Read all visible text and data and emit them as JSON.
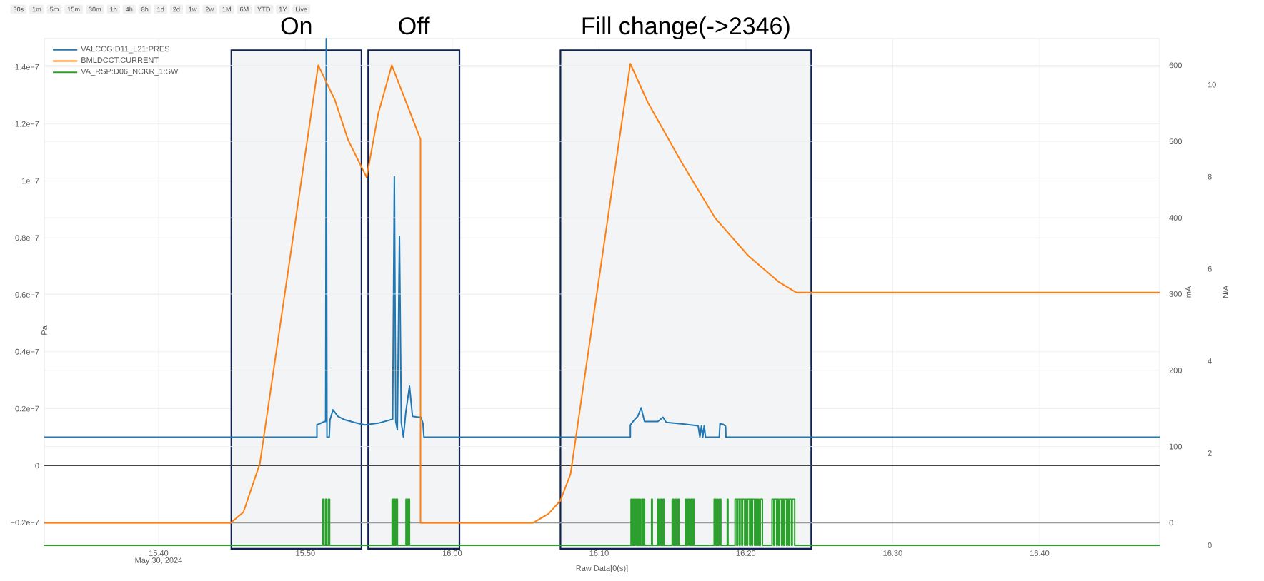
{
  "chart_data": {
    "type": "line",
    "xlabel": "Raw Data[0(s)]",
    "ylabel": "Pa",
    "y2label": "mA",
    "y3label": "N/A",
    "xlim": [
      15.537,
      16.803
    ],
    "xticks": [
      {
        "value": 15.6667,
        "label": "15:40"
      },
      {
        "value": 15.8333,
        "label": "15:50"
      },
      {
        "value": 16.0,
        "label": "16:00"
      },
      {
        "value": 16.1667,
        "label": "16:10"
      },
      {
        "value": 16.3333,
        "label": "16:20"
      },
      {
        "value": 16.5,
        "label": "16:30"
      },
      {
        "value": 16.6667,
        "label": "16:40"
      }
    ],
    "ylim": [
      -2.8e-08,
      1.5e-07
    ],
    "yticks": [
      {
        "value": -2e-08,
        "label": "−0.2e−7"
      },
      0,
      {
        "value": 2e-08,
        "label": "0.2e−7"
      },
      {
        "value": 4e-08,
        "label": "0.4e−7"
      },
      {
        "value": 6e-08,
        "label": "0.6e−7"
      },
      {
        "value": 8e-08,
        "label": "0.8e−7"
      },
      {
        "value": 1e-07,
        "label": "1e−7"
      },
      {
        "value": 1.2e-07,
        "label": "1.2e−7"
      },
      {
        "value": 1.4e-07,
        "label": "1.4e−7"
      }
    ],
    "y2lim": [
      -29.5,
      635
    ],
    "y2ticks": [
      0,
      100,
      200,
      300,
      400,
      500,
      600
    ],
    "y3lim": [
      0,
      11
    ],
    "y3ticks": [
      0,
      2,
      4,
      6,
      8,
      10
    ],
    "grid": true,
    "legend": "top left",
    "series": [
      {
        "name": "VALCCG:D11_L21:PRES",
        "color": "#1f77b4",
        "axis": "y",
        "x": [
          15.537,
          15.8464,
          15.8464,
          15.8551,
          15.8563,
          15.857,
          15.8578,
          15.8604,
          15.8612,
          15.8646,
          15.8703,
          15.878,
          15.8894,
          15.9008,
          15.9161,
          15.9324,
          15.9343,
          15.9359,
          15.9377,
          15.9401,
          15.9422,
          15.9446,
          15.9472,
          15.9515,
          15.9549,
          15.9617,
          15.9644,
          15.9667,
          15.9679,
          16.2022,
          16.2022,
          16.2068,
          16.2106,
          16.2144,
          16.2183,
          16.2334,
          16.2392,
          16.2429,
          16.2601,
          16.2791,
          16.2811,
          16.2829,
          16.2844,
          16.286,
          16.2875,
          16.3031,
          16.3039,
          16.3076,
          16.3103,
          16.3107,
          16.803
        ],
        "values": [
          1e-08,
          1e-08,
          1.43e-08,
          1.55e-08,
          1.55e-08,
          1.5e-07,
          1e-08,
          1e-08,
          1.6e-08,
          1.96e-08,
          1.73e-08,
          1.61e-08,
          1.51e-08,
          1.43e-08,
          1.49e-08,
          1.63e-08,
          1.015e-07,
          1.55e-08,
          1.26e-08,
          8.05e-08,
          1.5e-08,
          1e-08,
          1.85e-08,
          2.79e-08,
          1.73e-08,
          1.7e-08,
          1.7e-08,
          1.5e-08,
          1e-08,
          1e-08,
          1.43e-08,
          1.61e-08,
          1.73e-08,
          2.03e-08,
          1.55e-08,
          1.55e-08,
          1.7e-08,
          1.52e-08,
          1.47e-08,
          1.4e-08,
          1e-08,
          1.4e-08,
          1e-08,
          1.4e-08,
          1e-08,
          1e-08,
          1.47e-08,
          1.45e-08,
          1.38e-08,
          1e-08,
          1e-08
        ]
      },
      {
        "name": "BMLDCCT:CURRENT",
        "color": "#ff7f0e",
        "axis": "y2",
        "x": [
          15.537,
          15.7486,
          15.763,
          15.7817,
          15.8479,
          15.8666,
          15.8818,
          15.9028,
          15.9161,
          15.9314,
          15.964,
          15.964,
          16.092,
          16.1095,
          16.1228,
          16.1343,
          16.2022,
          16.2221,
          16.2601,
          16.2982,
          16.3362,
          16.3705,
          16.3907,
          16.803
        ],
        "values": [
          0,
          0,
          14,
          78,
          600,
          555,
          502,
          453,
          537,
          600,
          503,
          0,
          0,
          12,
          29,
          64,
          602,
          551,
          473,
          400,
          350,
          316,
          302,
          302
        ]
      },
      {
        "name": "VA_RSP:D06_NCKR_1:SW",
        "color": "#2ca02c",
        "type": "step",
        "axis": "y3",
        "x": [
          15.537,
          15.8532,
          15.8544,
          15.8564,
          15.8576,
          15.8596,
          15.8608,
          15.9318,
          15.933,
          15.9338,
          15.935,
          15.9362,
          15.9378,
          15.9475,
          15.9487,
          15.9499,
          15.9515,
          16.203,
          16.2042,
          16.2054,
          16.2062,
          16.207,
          16.2086,
          16.2098,
          16.211,
          16.2122,
          16.2134,
          16.2151,
          16.2163,
          16.2171,
          16.2183,
          16.2263,
          16.2271,
          16.2332,
          16.2344,
          16.236,
          16.2372,
          16.2392,
          16.2404,
          16.2497,
          16.2513,
          16.2529,
          16.2541,
          16.2562,
          16.2574,
          16.2646,
          16.2658,
          16.2675,
          16.2691,
          16.2707,
          16.2719,
          16.2731,
          16.2743,
          16.2973,
          16.2989,
          16.3001,
          16.3013,
          16.3029,
          16.3049,
          16.3122,
          16.313,
          16.321,
          16.323,
          16.3239,
          16.3259,
          16.3267,
          16.3287,
          16.3295,
          16.3319,
          16.3327,
          16.3343,
          16.3352,
          16.3376,
          16.3384,
          16.34,
          16.3408,
          16.3432,
          16.344,
          16.3456,
          16.3464,
          16.348,
          16.3497,
          16.3521,
          16.363,
          16.365,
          16.3658,
          16.3682,
          16.369,
          16.3706,
          16.3714,
          16.3738,
          16.3746,
          16.3762,
          16.3771,
          16.3795,
          16.3803,
          16.3819,
          16.3827,
          16.3851,
          16.3859,
          16.3887,
          16.803
        ],
        "values": [
          0,
          1,
          0,
          1,
          0,
          1,
          0,
          1,
          0,
          1,
          0,
          1,
          0,
          1,
          0,
          1,
          0,
          1,
          0,
          1,
          0,
          1,
          0,
          1,
          0,
          1,
          0,
          1,
          0,
          1,
          0,
          1,
          0,
          1,
          0,
          1,
          0,
          1,
          0,
          1,
          0,
          1,
          0,
          1,
          0,
          1,
          0,
          1,
          0,
          1,
          0,
          1,
          0,
          1,
          0,
          1,
          0,
          1,
          0,
          1,
          0,
          1,
          0,
          1,
          0,
          1,
          0,
          1,
          0,
          1,
          0,
          1,
          0,
          1,
          0,
          1,
          0,
          1,
          0,
          1,
          0,
          1,
          0,
          1,
          0,
          1,
          0,
          1,
          0,
          1,
          0,
          1,
          0,
          1,
          0,
          1,
          0,
          1,
          0,
          1,
          0,
          0
        ]
      }
    ],
    "ref_lines": [
      {
        "axis": "y",
        "value": 0,
        "color": "#444444"
      },
      {
        "axis": "y2",
        "value": 0,
        "color": "#999999"
      }
    ],
    "bands": [
      {
        "axis": "x",
        "from": 15.7493,
        "to": 15.897,
        "label": "On",
        "color": "#0e2150"
      },
      {
        "axis": "x",
        "from": 15.9046,
        "to": 16.0082,
        "label": "Off",
        "color": "#0e2150"
      },
      {
        "axis": "x",
        "from": 16.1229,
        "to": 16.4075,
        "label": "Fill change(->2346)",
        "color": "#0e2150"
      }
    ],
    "annotations": [
      "30s",
      "1m",
      "5m",
      "15m",
      "30m",
      "1h",
      "4h",
      "8h",
      "1d",
      "2d",
      "1w",
      "2w",
      "1M",
      "6M",
      "YTD",
      "1Y",
      "Live",
      "May 30, 2024"
    ]
  }
}
